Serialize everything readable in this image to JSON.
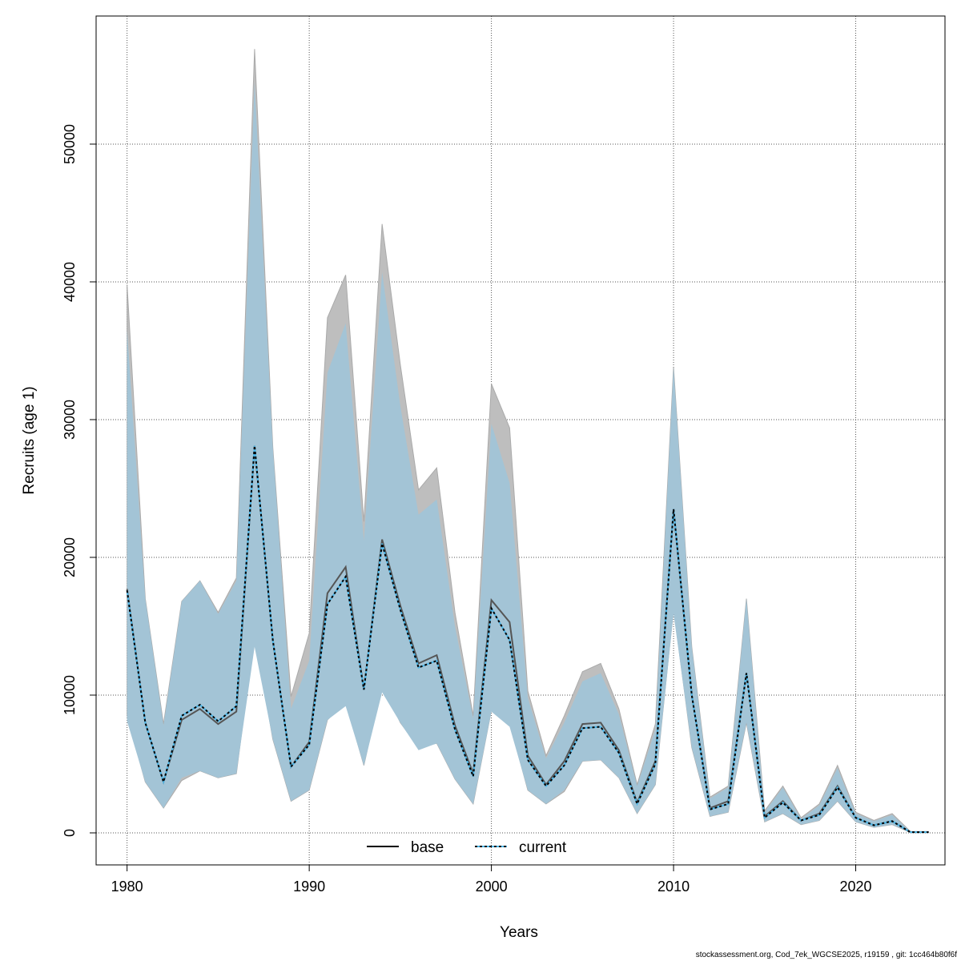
{
  "chart_data": {
    "type": "line",
    "title": "",
    "xlabel": "Years",
    "ylabel": "Recruits (age 1)",
    "xlim": [
      1978.3,
      2024.9
    ],
    "ylim": [
      -2326,
      59300
    ],
    "xticks": [
      1980,
      1990,
      2000,
      2010,
      2020
    ],
    "yticks": [
      0,
      10000,
      20000,
      30000,
      40000,
      50000
    ],
    "grid": true,
    "legend_position": "bottom",
    "colors": {
      "base_band": "#bebebe",
      "current_band": "#a3c4d6",
      "base_line": "#000000",
      "current_line": "#4bb6e8"
    },
    "x": [
      1980,
      1981,
      1982,
      1983,
      1984,
      1985,
      1986,
      1987,
      1988,
      1989,
      1990,
      1991,
      1992,
      1993,
      1994,
      1995,
      1996,
      1997,
      1998,
      1999,
      2000,
      2001,
      2002,
      2003,
      2004,
      2005,
      2006,
      2007,
      2008,
      2009,
      2010,
      2011,
      2012,
      2013,
      2014,
      2015,
      2016,
      2017,
      2018,
      2019,
      2020,
      2021,
      2022,
      2023,
      2024
    ],
    "series": [
      {
        "name": "base",
        "values": [
          17700,
          8000,
          3700,
          8200,
          9000,
          7900,
          8800,
          28100,
          14000,
          4800,
          6600,
          17400,
          19300,
          10400,
          21300,
          16500,
          12300,
          12900,
          7800,
          4300,
          16900,
          15300,
          5600,
          3500,
          5200,
          7900,
          8000,
          6000,
          2200,
          5200,
          23500,
          10000,
          1800,
          2300,
          11600,
          1200,
          2300,
          900,
          1400,
          3400,
          1100,
          550,
          850,
          50,
          50
        ],
        "upper": [
          39800,
          17000,
          7900,
          16800,
          18300,
          16000,
          18500,
          56900,
          28000,
          9900,
          14500,
          37400,
          40500,
          22600,
          44200,
          34000,
          24900,
          26500,
          16000,
          8500,
          32600,
          29400,
          10300,
          5600,
          8500,
          11700,
          12300,
          9000,
          3500,
          7900,
          33800,
          13500,
          2600,
          3400,
          17000,
          1600,
          3400,
          1100,
          2100,
          4900,
          1500,
          900,
          1400,
          100,
          100
        ],
        "lower": [
          8500,
          3700,
          1800,
          3800,
          4500,
          4000,
          4300,
          14500,
          6800,
          2300,
          3100,
          8200,
          9500,
          4900,
          10800,
          8000,
          6200,
          6500,
          3900,
          2100,
          8900,
          8000,
          3100,
          2100,
          3000,
          5200,
          5300,
          4000,
          1400,
          3500,
          16300,
          6200,
          1200,
          1500,
          8000,
          800,
          1400,
          600,
          900,
          2300,
          800,
          400,
          600,
          30,
          30
        ]
      },
      {
        "name": "current",
        "values": [
          17600,
          8000,
          3700,
          8500,
          9300,
          8100,
          9200,
          28100,
          14000,
          4800,
          6400,
          16600,
          18600,
          10400,
          21000,
          16200,
          12000,
          12500,
          7500,
          4100,
          16300,
          14000,
          5300,
          3400,
          4900,
          7600,
          7700,
          5800,
          2100,
          5000,
          23500,
          10000,
          1700,
          2100,
          11600,
          1100,
          2200,
          900,
          1300,
          3300,
          1100,
          550,
          850,
          50,
          50
        ],
        "upper": [
          36500,
          17000,
          7800,
          16800,
          18300,
          15900,
          18300,
          54500,
          28000,
          9000,
          12500,
          33400,
          37000,
          21200,
          40700,
          31000,
          23100,
          24200,
          15000,
          8300,
          29700,
          25400,
          9800,
          5400,
          8000,
          11000,
          11600,
          8600,
          3400,
          7500,
          33800,
          13500,
          2500,
          3300,
          17000,
          1500,
          3300,
          1000,
          2000,
          4700,
          1400,
          850,
          1300,
          100,
          100
        ],
        "lower": [
          8100,
          3700,
          1800,
          4000,
          4500,
          4000,
          4300,
          13500,
          6800,
          2300,
          3100,
          8200,
          9200,
          4900,
          10200,
          8000,
          6000,
          6500,
          3900,
          2100,
          8800,
          7700,
          3100,
          2100,
          3100,
          5200,
          5300,
          4000,
          1400,
          3500,
          15900,
          6200,
          1200,
          1500,
          8000,
          800,
          1400,
          600,
          900,
          2300,
          800,
          400,
          600,
          30,
          30
        ]
      }
    ]
  },
  "legend": {
    "base_label": "base",
    "current_label": "current"
  },
  "footer": "stockassessment.org, Cod_7ek_WGCSE2025, r19159 , git: 1cc464b80f6f"
}
